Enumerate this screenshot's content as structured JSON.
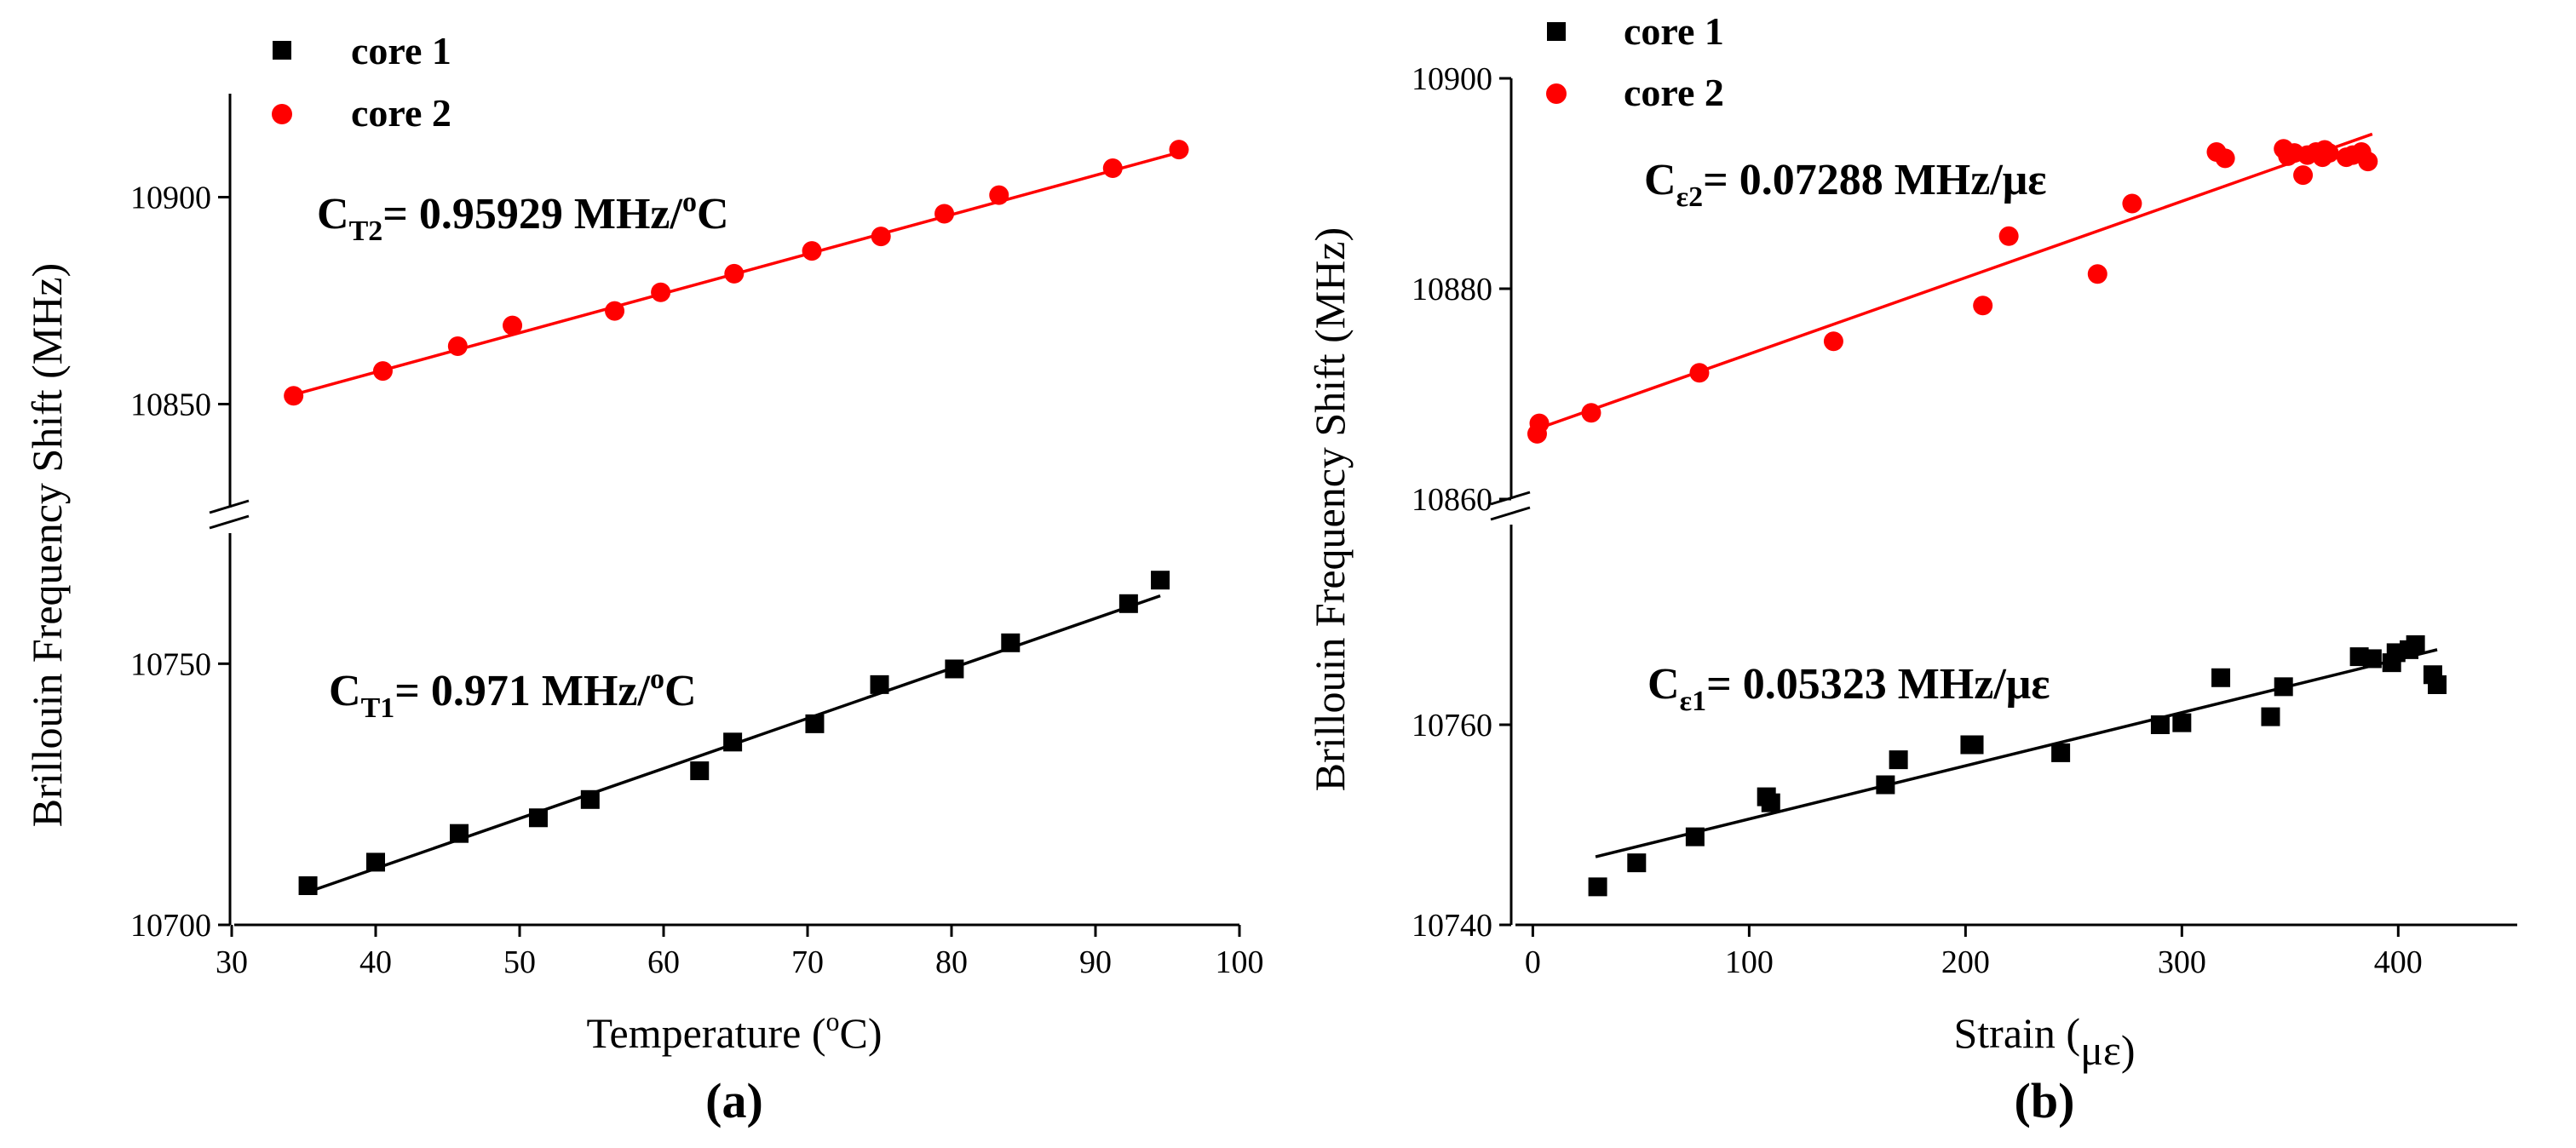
{
  "colors": {
    "core1": "#000000",
    "core2": "#ff0000"
  },
  "chart_data": [
    {
      "type": "scatter",
      "panel_label": "(a)",
      "xlabel": {
        "pre": "Temperature (",
        "sup": "o",
        "post": "C)"
      },
      "ylabel": "Brillouin Frequency Shift (MHz)",
      "xlim": [
        30,
        100
      ],
      "xticks": [
        "30",
        "40",
        "50",
        "60",
        "70",
        "80",
        "90",
        "100"
      ],
      "y_upper": {
        "range": [
          10825,
          10925
        ],
        "ticks": [
          "10850",
          "10900"
        ]
      },
      "y_lower": {
        "range": [
          10700,
          10775
        ],
        "ticks": [
          "10700",
          "10750"
        ]
      },
      "legend": [
        {
          "label": "core 1",
          "marker": "square",
          "color": "#000000"
        },
        {
          "label": "core 2",
          "marker": "circle",
          "color": "#ff0000"
        }
      ],
      "series": [
        {
          "name": "core 1",
          "segment": "lower",
          "marker": "square",
          "color": "#000000",
          "x": [
            35.3,
            40.0,
            45.8,
            51.3,
            54.9,
            62.5,
            64.8,
            70.5,
            75.0,
            80.2,
            84.1,
            92.3,
            94.5
          ],
          "y": [
            10707.5,
            10712,
            10717.5,
            10720.5,
            10724,
            10729.5,
            10735,
            10738.5,
            10746,
            10749,
            10754,
            10761.5,
            10766
          ],
          "fit": {
            "x": [
              35,
              94.5
            ],
            "y": [
              10706,
              10763
            ]
          }
        },
        {
          "name": "core 2",
          "segment": "upper",
          "marker": "circle",
          "color": "#ff0000",
          "x": [
            34.3,
            40.5,
            45.7,
            49.5,
            56.6,
            59.8,
            64.9,
            70.3,
            75.1,
            79.5,
            83.3,
            91.2,
            95.8
          ],
          "y": [
            10852,
            10858,
            10864,
            10869,
            10872.5,
            10877,
            10881.5,
            10887,
            10890.5,
            10896,
            10900.5,
            10907,
            10911.5
          ],
          "fit": {
            "x": [
              34,
              96
            ],
            "y": [
              10852,
              10911
            ]
          }
        }
      ],
      "annotations": [
        {
          "prefix": "C",
          "sub": "T2",
          "text": "= 0.95929 MHz/",
          "sup": "o",
          "suffix": "C",
          "color": "#000000"
        },
        {
          "prefix": "C",
          "sub": "T1",
          "text": "= 0.971 MHz/",
          "sup": "o",
          "suffix": "C",
          "color": "#000000"
        }
      ]
    },
    {
      "type": "scatter",
      "panel_label": "(b)",
      "xlabel": {
        "pre": "Strain (",
        "sup": "",
        "post": "με)"
      },
      "ylabel": "Brillouin Frequency Shift (MHz)",
      "xlim": [
        -10,
        455
      ],
      "xticks": [
        "0",
        "100",
        "200",
        "300",
        "400"
      ],
      "y_upper": {
        "range": [
          10860,
          10900
        ],
        "ticks": [
          "10860",
          "10880",
          "10900"
        ]
      },
      "y_lower": {
        "range": [
          10740,
          10780
        ],
        "ticks": [
          "10740",
          "10760"
        ]
      },
      "legend": [
        {
          "label": "core 1",
          "marker": "square",
          "color": "#000000"
        },
        {
          "label": "core 2",
          "marker": "circle",
          "color": "#ff0000"
        }
      ],
      "series": [
        {
          "name": "core 1",
          "segment": "lower",
          "marker": "square",
          "color": "#000000",
          "x": [
            30,
            48,
            75,
            108,
            110,
            163,
            169,
            202,
            204,
            244,
            290,
            300,
            318,
            341,
            347,
            382,
            388,
            397,
            399,
            405,
            408,
            416,
            418
          ],
          "y": [
            10743.8,
            10746.2,
            10748.8,
            10752.8,
            10752.2,
            10754.0,
            10756.5,
            10758.0,
            10758.0,
            10757.2,
            10760.0,
            10760.2,
            10764.7,
            10760.8,
            10763.8,
            10766.8,
            10766.6,
            10766.2,
            10767.2,
            10767.5,
            10768.0,
            10765.0,
            10764.0
          ],
          "fit": {
            "x": [
              29,
              418
            ],
            "y": [
              10746.8,
              10767.5
            ]
          }
        },
        {
          "name": "core 2",
          "segment": "upper",
          "marker": "circle",
          "color": "#ff0000",
          "x": [
            2,
            3,
            27,
            77,
            139,
            208,
            220,
            261,
            277,
            316,
            320,
            347,
            349,
            352,
            356,
            358,
            362,
            365,
            366,
            368,
            376,
            379,
            383,
            386
          ],
          "y": [
            10866.2,
            10867.2,
            10868.2,
            10872.0,
            10875.0,
            10878.4,
            10885.0,
            10881.4,
            10888.1,
            10893.0,
            10892.4,
            10893.3,
            10892.6,
            10892.9,
            10890.8,
            10892.7,
            10893.0,
            10892.5,
            10893.2,
            10892.9,
            10892.5,
            10892.7,
            10893.0,
            10892.1
          ],
          "fit": {
            "x": [
              1,
              388
            ],
            "y": [
              10866.6,
              10894.7
            ]
          }
        }
      ],
      "annotations": [
        {
          "prefix": "C",
          "sub": "ε2",
          "text": "= 0.07288 MHz/με",
          "sup": "",
          "suffix": "",
          "color": "#000000"
        },
        {
          "prefix": "C",
          "sub": "ε1",
          "text": "= 0.05323 MHz/με",
          "sup": "",
          "suffix": "",
          "color": "#000000"
        }
      ]
    }
  ]
}
